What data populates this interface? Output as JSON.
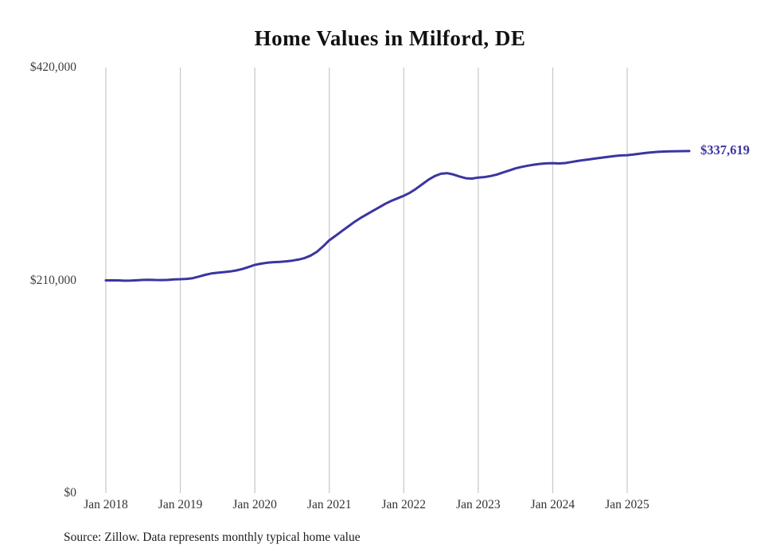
{
  "title": "Home Values in Milford, DE",
  "source_note": "Source: Zillow. Data represents monthly typical home value",
  "end_label": "$337,619",
  "colors": {
    "line": "#3a35a1",
    "end_label": "#3a35a1",
    "gridline": "#cbcbcb",
    "axis_text": "#3d3d3d",
    "title_text": "#111111"
  },
  "chart_data": {
    "type": "line",
    "title": "Home Values in Milford, DE",
    "xlabel": "",
    "ylabel": "",
    "ylim": [
      0,
      420000
    ],
    "y_ticks": [
      420000,
      210000,
      0
    ],
    "y_tick_labels": [
      "$420,000",
      "$210,000",
      "$0"
    ],
    "x_tick_labels": [
      "Jan 2018",
      "Jan 2019",
      "Jan 2020",
      "Jan 2021",
      "Jan 2022",
      "Jan 2023",
      "Jan 2024",
      "Jan 2025"
    ],
    "x_start": "2018-01",
    "x_end": "2025-11",
    "grid": "vertical-only",
    "legend": "none",
    "end_value": 337619,
    "series": [
      {
        "name": "Typical home value",
        "values": [
          210000,
          210100,
          210000,
          209700,
          209800,
          210100,
          210500,
          210600,
          210400,
          210300,
          210500,
          211000,
          211200,
          211500,
          212200,
          213800,
          215500,
          216800,
          217500,
          218200,
          218800,
          219800,
          221200,
          223200,
          225300,
          226500,
          227400,
          228000,
          228300,
          228800,
          229500,
          230500,
          232000,
          234500,
          238200,
          243500,
          249600,
          254000,
          258500,
          263000,
          267500,
          271500,
          275000,
          278500,
          282000,
          285500,
          288500,
          291000,
          293500,
          296500,
          300500,
          305000,
          309500,
          313000,
          315300,
          315800,
          314500,
          312500,
          310800,
          310500,
          311500,
          312000,
          313000,
          314500,
          316500,
          318500,
          320500,
          322000,
          323200,
          324200,
          325000,
          325500,
          325700,
          325400,
          325800,
          326800,
          327800,
          328800,
          329600,
          330400,
          331200,
          332000,
          332800,
          333300,
          333600,
          334200,
          335000,
          335800,
          336400,
          336900,
          337200,
          337400,
          337500,
          337550,
          337619
        ]
      }
    ]
  }
}
